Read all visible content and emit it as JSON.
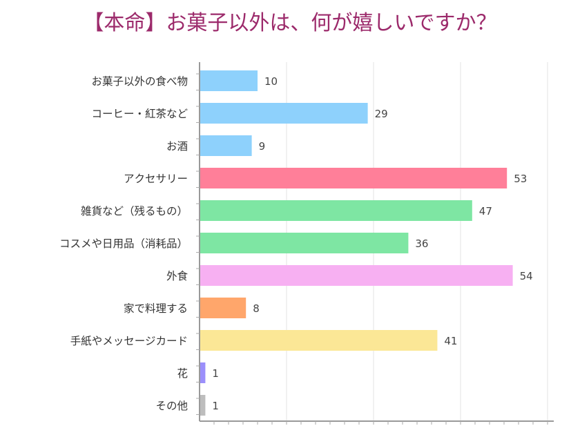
{
  "title_color": "#9c2a6b",
  "chart_data": {
    "type": "bar",
    "orientation": "horizontal",
    "title": "【本命】お菓子以外は、何が嬉しいですか？",
    "categories": [
      "お菓子以外の食べ物",
      "コーヒー・紅茶など",
      "お酒",
      "アクセサリー",
      "雑貨など（残るもの）",
      "コスメや日用品（消耗品）",
      "外食",
      "家で料理する",
      "手紙やメッセージカード",
      "花",
      "その他"
    ],
    "values": [
      10,
      29,
      9,
      53,
      47,
      36,
      54,
      8,
      41,
      1,
      1
    ],
    "bar_colors": [
      "#8ed1fc",
      "#8ed1fc",
      "#8ed1fc",
      "#ff7f99",
      "#7ee6a3",
      "#7ee6a3",
      "#f7b0f2",
      "#ffa66b",
      "#fbe796",
      "#9b8ffb",
      "#bdbdbd"
    ],
    "xlim": [
      0,
      60
    ],
    "grid": true,
    "legend": "none",
    "data_labels": true
  }
}
